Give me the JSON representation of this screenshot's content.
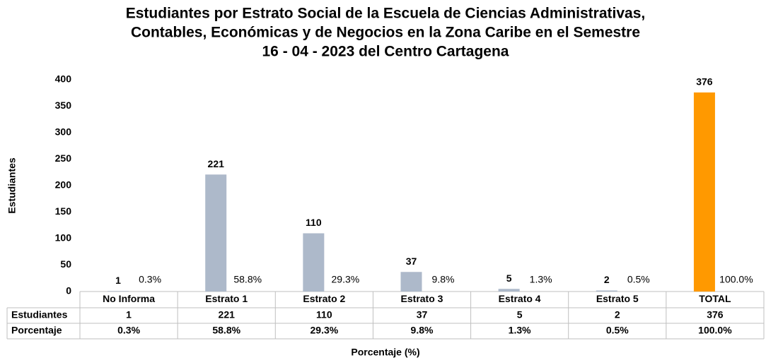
{
  "chart_data": {
    "type": "bar",
    "title": [
      "Estudiantes por Estrato Social de la Escuela de Ciencias Administrativas,",
      "Contables, Económicas y de Negocios en la Zona Caribe en el Semestre",
      "16 - 04 - 2023 del Centro Cartagena"
    ],
    "x_label": "Porcentaje (%)",
    "y_label": "Estudiantes",
    "categories": [
      "No Informa",
      "Estrato 1",
      "Estrato 2",
      "Estrato 3",
      "Estrato 4",
      "Estrato 5",
      "TOTAL"
    ],
    "series": [
      {
        "name": "Estudiantes",
        "colors": [
          "#adb9ca",
          "#adb9ca",
          "#adb9ca",
          "#adb9ca",
          "#adb9ca",
          "#adb9ca",
          "#ff9900"
        ],
        "values": [
          1,
          221,
          110,
          37,
          5,
          2,
          376
        ]
      },
      {
        "name": "Porcentaje",
        "values": [
          0.3,
          58.8,
          29.3,
          9.8,
          1.3,
          0.5,
          100.0
        ],
        "value_labels": [
          "0.3%",
          "58.8%",
          "29.3%",
          "9.8%",
          "1.3%",
          "0.5%",
          "100.0%"
        ]
      }
    ],
    "ylim": [
      0,
      400
    ],
    "yticks": [
      0,
      50,
      100,
      150,
      200,
      250,
      300,
      350,
      400
    ],
    "grid": false
  }
}
